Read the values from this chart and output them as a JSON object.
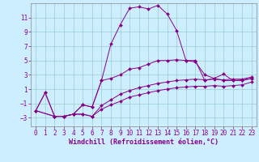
{
  "background_color": "#cceeff",
  "line_color": "#880088",
  "grid_color": "#99cccc",
  "spine_color": "#888888",
  "xlabel": "Windchill (Refroidissement éolien,°C)",
  "xlabel_fontsize": 6.0,
  "tick_fontsize": 5.5,
  "xlim": [
    -0.5,
    23.5
  ],
  "ylim": [
    -4.2,
    13.0
  ],
  "yticks": [
    -3,
    -1,
    1,
    3,
    5,
    7,
    9,
    11
  ],
  "xticks": [
    0,
    1,
    2,
    3,
    4,
    5,
    6,
    7,
    8,
    9,
    10,
    11,
    12,
    13,
    14,
    15,
    16,
    17,
    18,
    19,
    20,
    21,
    22,
    23
  ],
  "series1_x": [
    0,
    1,
    2,
    3,
    4,
    5,
    6,
    7,
    8,
    9,
    10,
    11,
    12,
    13,
    14,
    15,
    16,
    17,
    18,
    19,
    20,
    21,
    22,
    23
  ],
  "series1_y": [
    -2.0,
    0.5,
    -2.8,
    -2.8,
    -2.5,
    -1.2,
    -1.5,
    2.2,
    7.3,
    10.0,
    12.3,
    12.5,
    12.2,
    12.7,
    11.5,
    9.2,
    5.0,
    4.8,
    3.0,
    2.5,
    3.1,
    2.2,
    2.3,
    2.5
  ],
  "series2_x": [
    0,
    1,
    2,
    3,
    4,
    5,
    6,
    7,
    8,
    9,
    10,
    11,
    12,
    13,
    14,
    15,
    16,
    17,
    18,
    19,
    20,
    21,
    22,
    23
  ],
  "series2_y": [
    -2.0,
    0.5,
    -2.8,
    -2.8,
    -2.5,
    -1.2,
    -1.5,
    2.2,
    2.5,
    3.0,
    3.8,
    4.0,
    4.5,
    5.0,
    5.0,
    5.1,
    5.0,
    5.0,
    2.2,
    2.5,
    2.2,
    2.2,
    2.2,
    2.5
  ],
  "series3_x": [
    0,
    2,
    3,
    4,
    5,
    6,
    7,
    8,
    9,
    10,
    11,
    12,
    13,
    14,
    15,
    16,
    17,
    18,
    19,
    20,
    21,
    22,
    23
  ],
  "series3_y": [
    -2.0,
    -2.8,
    -2.8,
    -2.5,
    -2.5,
    -2.8,
    -1.3,
    -0.5,
    0.3,
    0.8,
    1.2,
    1.5,
    1.8,
    2.0,
    2.2,
    2.3,
    2.4,
    2.3,
    2.4,
    2.3,
    2.4,
    2.4,
    2.7
  ],
  "series4_x": [
    0,
    2,
    3,
    4,
    5,
    6,
    7,
    8,
    9,
    10,
    11,
    12,
    13,
    14,
    15,
    16,
    17,
    18,
    19,
    20,
    21,
    22,
    23
  ],
  "series4_y": [
    -2.0,
    -2.8,
    -2.8,
    -2.5,
    -2.5,
    -2.8,
    -1.8,
    -1.2,
    -0.7,
    -0.1,
    0.2,
    0.5,
    0.8,
    1.0,
    1.2,
    1.3,
    1.4,
    1.4,
    1.5,
    1.4,
    1.5,
    1.6,
    2.0
  ]
}
